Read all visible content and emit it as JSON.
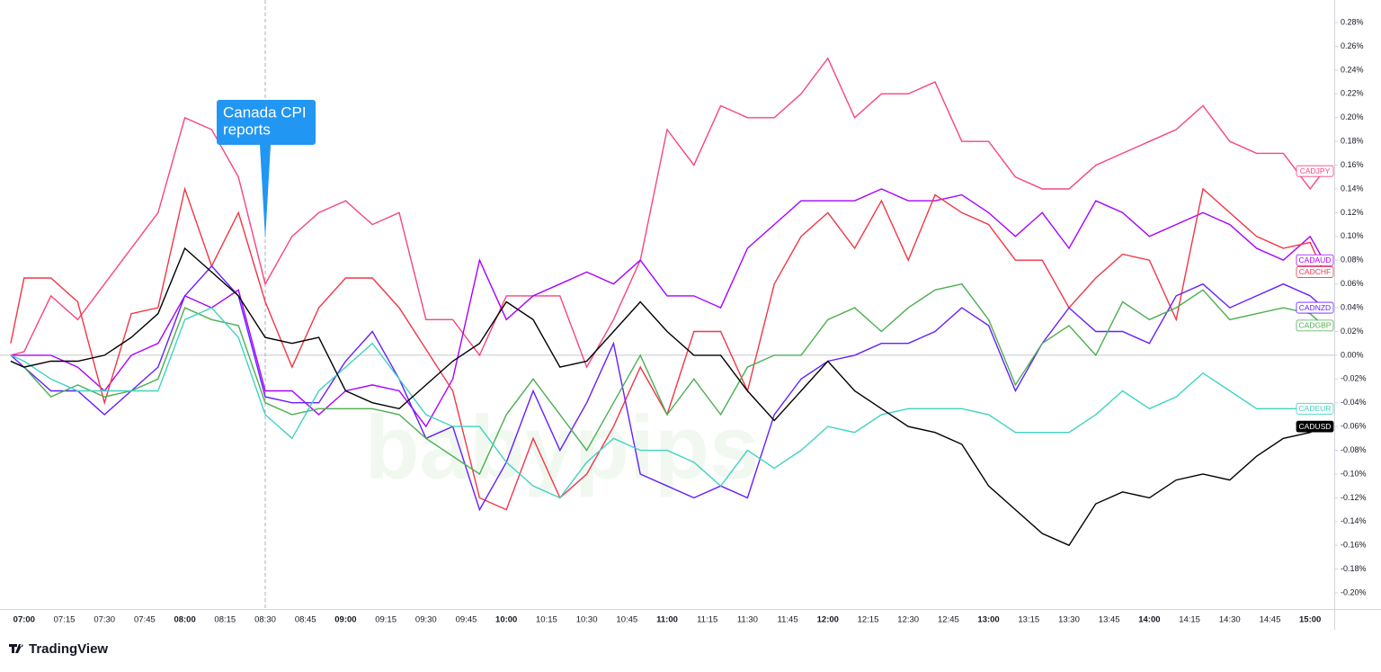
{
  "chart_data": {
    "type": "line",
    "x": [
      "06:55",
      "07:00",
      "07:10",
      "07:20",
      "07:30",
      "07:40",
      "07:50",
      "08:00",
      "08:10",
      "08:20",
      "08:30",
      "08:40",
      "08:50",
      "09:00",
      "09:10",
      "09:20",
      "09:30",
      "09:40",
      "09:50",
      "10:00",
      "10:10",
      "10:20",
      "10:30",
      "10:40",
      "10:50",
      "11:00",
      "11:10",
      "11:20",
      "11:30",
      "11:40",
      "11:50",
      "12:00",
      "12:10",
      "12:20",
      "12:30",
      "12:40",
      "12:50",
      "13:00",
      "13:10",
      "13:20",
      "13:30",
      "13:40",
      "13:50",
      "14:00",
      "14:10",
      "14:20",
      "14:30",
      "14:40",
      "14:50",
      "15:00",
      "15:05"
    ],
    "xlim": [
      "06:51",
      "15:09"
    ],
    "xticks": [
      "07:00",
      "07:15",
      "07:30",
      "07:45",
      "08:00",
      "08:15",
      "08:30",
      "08:45",
      "09:00",
      "09:15",
      "09:30",
      "09:45",
      "10:00",
      "10:15",
      "10:30",
      "10:45",
      "11:00",
      "11:15",
      "11:30",
      "11:45",
      "12:00",
      "12:15",
      "12:30",
      "12:45",
      "13:00",
      "13:15",
      "13:30",
      "13:45",
      "14:00",
      "14:15",
      "14:30",
      "14:45",
      "15:00"
    ],
    "ylim": [
      -0.2136,
      0.299
    ],
    "yticks": [
      {
        "value": 0.28,
        "label": "0.28%"
      },
      {
        "value": 0.26,
        "label": "0.26%"
      },
      {
        "value": 0.24,
        "label": "0.24%"
      },
      {
        "value": 0.22,
        "label": "0.22%"
      },
      {
        "value": 0.2,
        "label": "0.20%"
      },
      {
        "value": 0.18,
        "label": "0.18%"
      },
      {
        "value": 0.16,
        "label": "0.16%"
      },
      {
        "value": 0.14,
        "label": "0.14%"
      },
      {
        "value": 0.12,
        "label": "0.12%"
      },
      {
        "value": 0.1,
        "label": "0.10%"
      },
      {
        "value": 0.08,
        "label": "0.08%"
      },
      {
        "value": 0.06,
        "label": "0.06%"
      },
      {
        "value": 0.04,
        "label": "0.04%"
      },
      {
        "value": 0.02,
        "label": "0.02%"
      },
      {
        "value": 0,
        "label": "0.00%"
      },
      {
        "value": -0.02,
        "label": "-0.02%"
      },
      {
        "value": -0.04,
        "label": "-0.04%"
      },
      {
        "value": -0.06,
        "label": "-0.06%"
      },
      {
        "value": -0.08,
        "label": "-0.08%"
      },
      {
        "value": -0.1,
        "label": "-0.10%"
      },
      {
        "value": -0.12,
        "label": "-0.12%"
      },
      {
        "value": -0.14,
        "label": "-0.14%"
      },
      {
        "value": -0.16,
        "label": "-0.16%"
      },
      {
        "value": -0.18,
        "label": "-0.18%"
      },
      {
        "value": -0.2,
        "label": "-0.20%"
      }
    ],
    "grid": false,
    "series": [
      {
        "name": "CADJPY",
        "color": "#f7457d",
        "values": [
          0,
          0.003,
          0.05,
          0.03,
          0.06,
          0.09,
          0.12,
          0.2,
          0.19,
          0.15,
          0.06,
          0.1,
          0.12,
          0.13,
          0.11,
          0.12,
          0.03,
          0.03,
          0,
          0.05,
          0.05,
          0.05,
          -0.01,
          0.03,
          0.08,
          0.19,
          0.16,
          0.21,
          0.2,
          0.2,
          0.22,
          0.25,
          0.2,
          0.22,
          0.22,
          0.23,
          0.18,
          0.18,
          0.15,
          0.14,
          0.14,
          0.16,
          0.17,
          0.18,
          0.19,
          0.21,
          0.18,
          0.17,
          0.17,
          0.14,
          0.155
        ]
      },
      {
        "name": "CADAUD",
        "color": "#aa00ff",
        "values": [
          0,
          0,
          0,
          -0.01,
          -0.03,
          0,
          0.01,
          0.05,
          0.04,
          0.055,
          -0.03,
          -0.03,
          -0.05,
          -0.03,
          -0.025,
          -0.03,
          -0.06,
          -0.02,
          0.08,
          0.03,
          0.05,
          0.06,
          0.07,
          0.06,
          0.08,
          0.05,
          0.05,
          0.04,
          0.09,
          0.11,
          0.13,
          0.13,
          0.13,
          0.14,
          0.13,
          0.13,
          0.135,
          0.12,
          0.1,
          0.12,
          0.09,
          0.13,
          0.12,
          0.1,
          0.11,
          0.12,
          0.11,
          0.09,
          0.08,
          0.1,
          0.08
        ]
      },
      {
        "name": "CADCHF",
        "color": "#f23645",
        "values": [
          0.01,
          0.065,
          0.065,
          0.045,
          -0.04,
          0.035,
          0.04,
          0.14,
          0.075,
          0.12,
          0.045,
          -0.01,
          0.04,
          0.065,
          0.065,
          0.04,
          0.005,
          -0.03,
          -0.12,
          -0.13,
          -0.07,
          -0.12,
          -0.1,
          -0.06,
          -0.01,
          -0.05,
          0.02,
          0.02,
          -0.03,
          0.06,
          0.1,
          0.12,
          0.09,
          0.13,
          0.08,
          0.135,
          0.12,
          0.11,
          0.08,
          0.08,
          0.04,
          0.065,
          0.085,
          0.08,
          0.03,
          0.14,
          0.12,
          0.1,
          0.09,
          0.095,
          0.07
        ]
      },
      {
        "name": "CADNZD",
        "color": "#651fff",
        "values": [
          0,
          -0.01,
          -0.03,
          -0.03,
          -0.05,
          -0.03,
          -0.01,
          0.05,
          0.075,
          0.05,
          -0.035,
          -0.04,
          -0.04,
          -0.005,
          0.02,
          -0.02,
          -0.07,
          -0.06,
          -0.13,
          -0.09,
          -0.03,
          -0.08,
          -0.04,
          0.01,
          -0.1,
          -0.11,
          -0.12,
          -0.11,
          -0.12,
          -0.05,
          -0.02,
          -0.005,
          0,
          0.01,
          0.01,
          0.02,
          0.04,
          0.025,
          -0.03,
          0.01,
          0.04,
          0.02,
          0.02,
          0.01,
          0.05,
          0.06,
          0.04,
          0.05,
          0.06,
          0.05,
          0.04
        ]
      },
      {
        "name": "CADGBP",
        "color": "#4caf50",
        "values": [
          -0.005,
          -0.01,
          -0.035,
          -0.025,
          -0.035,
          -0.03,
          -0.02,
          0.04,
          0.03,
          0.025,
          -0.04,
          -0.05,
          -0.045,
          -0.045,
          -0.045,
          -0.05,
          -0.07,
          -0.085,
          -0.1,
          -0.05,
          -0.02,
          -0.05,
          -0.08,
          -0.04,
          0,
          -0.05,
          -0.02,
          -0.05,
          -0.01,
          0,
          0,
          0.03,
          0.04,
          0.02,
          0.04,
          0.055,
          0.06,
          0.03,
          -0.025,
          0.01,
          0.025,
          0,
          0.045,
          0.03,
          0.04,
          0.055,
          0.03,
          0.035,
          0.04,
          0.035,
          0.025
        ]
      },
      {
        "name": "CADEUR",
        "color": "#3fd3c1",
        "values": [
          0,
          -0.005,
          -0.02,
          -0.03,
          -0.03,
          -0.03,
          -0.03,
          0.03,
          0.04,
          0.015,
          -0.05,
          -0.07,
          -0.03,
          -0.01,
          0.01,
          -0.02,
          -0.05,
          -0.06,
          -0.06,
          -0.09,
          -0.11,
          -0.12,
          -0.09,
          -0.07,
          -0.08,
          -0.08,
          -0.09,
          -0.11,
          -0.08,
          -0.095,
          -0.08,
          -0.06,
          -0.065,
          -0.05,
          -0.045,
          -0.045,
          -0.045,
          -0.05,
          -0.065,
          -0.065,
          -0.065,
          -0.05,
          -0.03,
          -0.045,
          -0.035,
          -0.015,
          -0.03,
          -0.045,
          -0.045,
          -0.045,
          -0.045
        ]
      },
      {
        "name": "CADUSD",
        "color": "#000000",
        "values": [
          -0.005,
          -0.01,
          -0.005,
          -0.005,
          0,
          0.015,
          0.035,
          0.09,
          0.07,
          0.05,
          0.015,
          0.01,
          0.015,
          -0.03,
          -0.04,
          -0.045,
          -0.025,
          -0.005,
          0.01,
          0.045,
          0.03,
          -0.01,
          -0.005,
          0.02,
          0.045,
          0.02,
          0,
          0,
          -0.03,
          -0.055,
          -0.03,
          -0.005,
          -0.03,
          -0.045,
          -0.06,
          -0.065,
          -0.075,
          -0.11,
          -0.13,
          -0.15,
          -0.16,
          -0.125,
          -0.115,
          -0.12,
          -0.105,
          -0.1,
          -0.105,
          -0.085,
          -0.07,
          -0.065,
          -0.06
        ]
      }
    ],
    "annotation": {
      "lines": [
        "Canada CPI",
        "reports"
      ],
      "x": "08:30",
      "color": "#2196f3"
    },
    "watermark": "babypips",
    "brand": "TradingView"
  }
}
